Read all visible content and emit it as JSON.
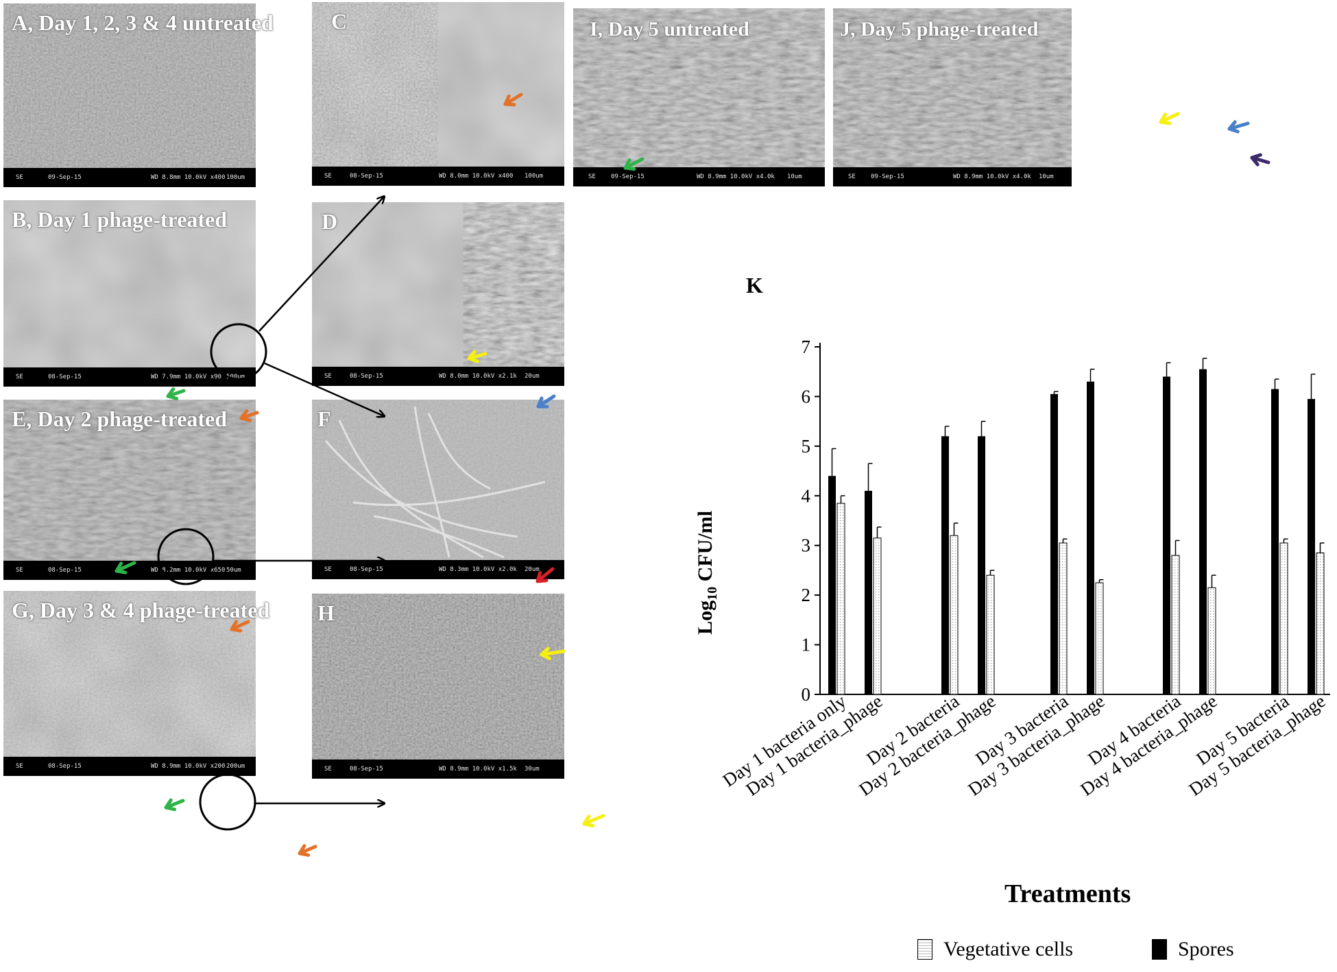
{
  "colors": {
    "green_arrow": "#2fb34a",
    "orange_arrow": "#e2722a",
    "yellow_arrow": "#f5ef12",
    "blue_arrow": "#4a7fc9",
    "red_arrow": "#d8202a",
    "purple_arrow": "#3b2a6b"
  },
  "panels": {
    "A": {
      "label": "A, Day 1, 2, 3 & 4 untreated",
      "sem": {
        "mode": "SE",
        "date": "09-Sep-15",
        "params": "WD 8.8mm 10.0kV x400",
        "scale": "100um"
      }
    },
    "B": {
      "label": "B,  Day 1 phage-treated",
      "sem": {
        "mode": "SE",
        "date": "08-Sep-15",
        "params": "WD 7.9mm 10.0kV x90",
        "scale": "500um"
      }
    },
    "C": {
      "label": "C",
      "sem": {
        "mode": "SE",
        "date": "08-Sep-15",
        "params": "WD 8.0mm 10.0kV x400",
        "scale": "100um"
      }
    },
    "D": {
      "label": "D",
      "sem": {
        "mode": "SE",
        "date": "08-Sep-15",
        "params": "WD 8.0mm 10.0kV x2.1k",
        "scale": "20um"
      }
    },
    "E": {
      "label": "E, Day 2 phage-treated",
      "sem": {
        "mode": "SE",
        "date": "08-Sep-15",
        "params": "WD 8.2mm 10.0kV x650",
        "scale": "50um"
      }
    },
    "F": {
      "label": "F",
      "sem": {
        "mode": "SE",
        "date": "08-Sep-15",
        "params": "WD 8.3mm 10.0kV x2.0k",
        "scale": "20um"
      }
    },
    "G": {
      "label": "G, Day 3 & 4 phage-treated",
      "sem": {
        "mode": "SE",
        "date": "08-Sep-15",
        "params": "WD 8.9mm 10.0kV x200",
        "scale": "200um"
      }
    },
    "H": {
      "label": "H",
      "sem": {
        "mode": "SE",
        "date": "08-Sep-15",
        "params": "WD 8.9mm 10.0kV x1.5k",
        "scale": "30um"
      }
    },
    "I": {
      "label": "I, Day 5 untreated",
      "sem": {
        "mode": "SE",
        "date": "09-Sep-15",
        "params": "WD 8.9mm 10.0kV x4.0k",
        "scale": "10um"
      }
    },
    "J": {
      "label": "J,  Day 5 phage-treated",
      "sem": {
        "mode": "SE",
        "date": "09-Sep-15",
        "params": "WD 8.9mm 10.0kV x4.0k",
        "scale": "10um"
      }
    }
  },
  "chart_data": {
    "type": "bar",
    "panel_label": "K",
    "xlabel": "Treatments",
    "ylabel_main": "Log",
    "ylabel_sub": "10",
    "ylabel_rest": " CFU/ml",
    "ylim": [
      0,
      7
    ],
    "yticks": [
      "0",
      "1",
      "2",
      "3",
      "4",
      "5",
      "6",
      "7"
    ],
    "categories": [
      "Day 1 bacteria only",
      "Day 1 bacteria_phage",
      "Day 2 bacteria",
      "Day 2 bacteria_phage",
      "Day 3 bacteria",
      "Day 3 bacteria_phage",
      "Day 4 bacteria",
      "Day 4 bacteria_phage",
      "Day 5 bacteria",
      "Day 5 bacteria_phage"
    ],
    "series": [
      {
        "name": "Spores",
        "values": [
          4.4,
          4.1,
          5.2,
          5.2,
          6.05,
          6.3,
          6.4,
          6.55,
          6.15,
          5.95
        ],
        "errors": [
          0.55,
          0.55,
          0.2,
          0.3,
          0.05,
          0.25,
          0.28,
          0.22,
          0.2,
          0.5
        ]
      },
      {
        "name": "Vegetative cells",
        "values": [
          3.85,
          3.15,
          3.2,
          2.4,
          3.05,
          2.25,
          2.8,
          2.15,
          3.05,
          2.85
        ],
        "errors": [
          0.15,
          0.22,
          0.25,
          0.1,
          0.08,
          0.06,
          0.3,
          0.25,
          0.08,
          0.2
        ]
      }
    ],
    "legend": [
      "Vegetative cells",
      "Spores"
    ]
  }
}
